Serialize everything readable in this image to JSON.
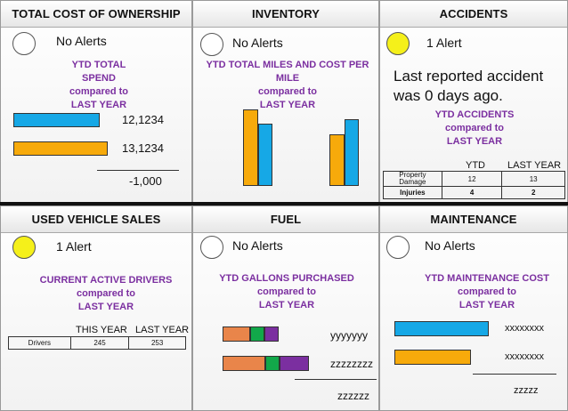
{
  "tco": {
    "title": "TOTAL COST OF OWNERSHIP",
    "alert": "No Alerts",
    "subtitle_lines": [
      "YTD TOTAL",
      "SPEND",
      "compared to",
      "LAST YEAR"
    ],
    "value_this": "12,1234",
    "value_last": "13,1234",
    "difference": "-1,000"
  },
  "inventory": {
    "title": "INVENTORY",
    "alert": "No Alerts",
    "subtitle_lines": [
      "YTD TOTAL MILES AND COST PER",
      "MILE",
      "compared to",
      "LAST YEAR"
    ]
  },
  "accidents": {
    "title": "ACCIDENTS",
    "alert": "1 Alert",
    "message_line1": "Last reported accident",
    "message_line2": "was 0 days ago.",
    "subtitle_lines": [
      "YTD ACCIDENTS",
      "compared to",
      "LAST YEAR"
    ],
    "table": {
      "col_ytd": "YTD",
      "col_last": "LAST YEAR",
      "rows": [
        {
          "label": "Property Damage",
          "ytd": "12",
          "last": "13"
        },
        {
          "label": "Injuries",
          "ytd": "4",
          "last": "2"
        }
      ]
    }
  },
  "used_vehicle": {
    "title": "USED VEHICLE SALES",
    "alert": "1 Alert",
    "subtitle_lines": [
      "CURRENT ACTIVE DRIVERS",
      "compared to",
      "LAST YEAR"
    ],
    "table": {
      "col_this": "THIS YEAR",
      "col_last": "LAST YEAR",
      "row_label": "Drivers",
      "this": "245",
      "last": "253"
    }
  },
  "fuel": {
    "title": "FUEL",
    "alert": "No Alerts",
    "subtitle_lines": [
      "YTD GALLONS PURCHASED",
      "compared to",
      "LAST YEAR"
    ],
    "value_this": "yyyyyyy",
    "value_last": "zzzzzzzz",
    "difference": "zzzzzz"
  },
  "maintenance": {
    "title": "MAINTENANCE",
    "alert": "No Alerts",
    "subtitle_lines": [
      "YTD MAINTENANCE COST",
      "compared to",
      "LAST YEAR"
    ],
    "value_this": "xxxxxxxx",
    "value_last": "xxxxxxxx",
    "difference": "zzzzz"
  },
  "colors": {
    "blue": "#16a8e6",
    "orange": "#f7aa0b",
    "green": "#12a84a",
    "purple": "#7b2fa0",
    "alert_yellow": "#f5f01a"
  }
}
